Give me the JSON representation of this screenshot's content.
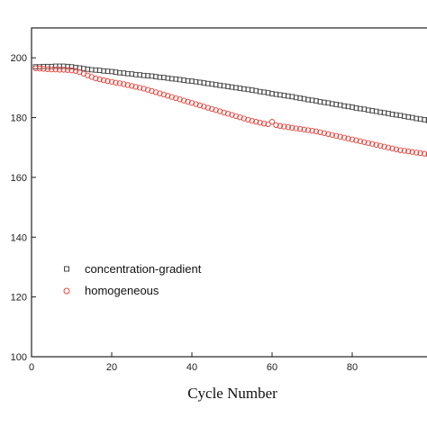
{
  "chart_data": {
    "type": "scatter",
    "title": "",
    "xlabel": "Cycle Number",
    "ylabel": "",
    "xlim": [
      0,
      100
    ],
    "ylim": [
      100,
      210
    ],
    "x_ticks": [
      0,
      20,
      40,
      60,
      80
    ],
    "y_ticks": [
      100,
      120,
      140,
      160,
      180,
      200
    ],
    "x_tick_labels": [
      "0",
      "20",
      "40",
      "60",
      "80"
    ],
    "y_tick_labels": [
      "100",
      "120",
      "140",
      "160",
      "180",
      "200"
    ],
    "grid": false,
    "legend_position": "lower-left",
    "series": [
      {
        "name": "concentration-gradient",
        "marker": "square",
        "color": "#444444",
        "x": [
          1,
          2,
          3,
          4,
          5,
          6,
          7,
          8,
          9,
          10,
          11,
          12,
          13,
          14,
          15,
          16,
          17,
          18,
          19,
          20,
          21,
          22,
          23,
          24,
          25,
          26,
          27,
          28,
          29,
          30,
          31,
          32,
          33,
          34,
          35,
          36,
          37,
          38,
          39,
          40,
          41,
          42,
          43,
          44,
          45,
          46,
          47,
          48,
          49,
          50,
          51,
          52,
          53,
          54,
          55,
          56,
          57,
          58,
          59,
          60,
          61,
          62,
          63,
          64,
          65,
          66,
          67,
          68,
          69,
          70,
          71,
          72,
          73,
          74,
          75,
          76,
          77,
          78,
          79,
          80,
          81,
          82,
          83,
          84,
          85,
          86,
          87,
          88,
          89,
          90,
          91,
          92,
          93,
          94,
          95,
          96,
          97,
          98,
          99,
          100
        ],
        "y": [
          197.0,
          197.0,
          197.1,
          197.1,
          197.1,
          197.2,
          197.2,
          197.2,
          197.1,
          197.0,
          196.8,
          196.6,
          196.4,
          196.2,
          196.0,
          195.9,
          195.8,
          195.6,
          195.5,
          195.4,
          195.2,
          195.0,
          194.9,
          194.7,
          194.6,
          194.4,
          194.3,
          194.1,
          194.0,
          193.9,
          193.7,
          193.5,
          193.4,
          193.2,
          193.0,
          192.9,
          192.7,
          192.5,
          192.3,
          192.2,
          192.0,
          191.8,
          191.6,
          191.4,
          191.2,
          191.0,
          190.8,
          190.6,
          190.4,
          190.2,
          190.0,
          189.8,
          189.6,
          189.4,
          189.2,
          189.0,
          188.7,
          188.5,
          188.3,
          188.0,
          187.8,
          187.6,
          187.4,
          187.2,
          187.0,
          186.7,
          186.5,
          186.3,
          186.0,
          185.8,
          185.6,
          185.3,
          185.1,
          184.9,
          184.6,
          184.4,
          184.2,
          183.9,
          183.7,
          183.5,
          183.2,
          183.0,
          182.8,
          182.5,
          182.3,
          182.1,
          181.8,
          181.6,
          181.4,
          181.1,
          180.9,
          180.7,
          180.4,
          180.2,
          180.0,
          179.7,
          179.5,
          179.3,
          179.0,
          178.8
        ]
      },
      {
        "name": "homogeneous",
        "marker": "circle",
        "color": "#e3433b",
        "x": [
          1,
          2,
          3,
          4,
          5,
          6,
          7,
          8,
          9,
          10,
          11,
          12,
          13,
          14,
          15,
          16,
          17,
          18,
          19,
          20,
          21,
          22,
          23,
          24,
          25,
          26,
          27,
          28,
          29,
          30,
          31,
          32,
          33,
          34,
          35,
          36,
          37,
          38,
          39,
          40,
          41,
          42,
          43,
          44,
          45,
          46,
          47,
          48,
          49,
          50,
          51,
          52,
          53,
          54,
          55,
          56,
          57,
          58,
          59,
          60,
          61,
          62,
          63,
          64,
          65,
          66,
          67,
          68,
          69,
          70,
          71,
          72,
          73,
          74,
          75,
          76,
          77,
          78,
          79,
          80,
          81,
          82,
          83,
          84,
          85,
          86,
          87,
          88,
          89,
          90,
          91,
          92,
          93,
          94,
          95,
          96,
          97,
          98,
          99,
          100
        ],
        "y": [
          196.5,
          196.4,
          196.3,
          196.2,
          196.1,
          196.1,
          196.0,
          196.0,
          195.9,
          195.8,
          195.6,
          195.2,
          194.7,
          194.1,
          193.6,
          193.1,
          192.8,
          192.5,
          192.2,
          192.0,
          191.7,
          191.5,
          191.2,
          190.9,
          190.6,
          190.3,
          190.0,
          189.7,
          189.3,
          188.9,
          188.5,
          188.1,
          187.7,
          187.3,
          186.9,
          186.5,
          186.1,
          185.7,
          185.3,
          184.9,
          184.5,
          184.1,
          183.7,
          183.3,
          182.9,
          182.5,
          182.1,
          181.7,
          181.3,
          180.9,
          180.5,
          180.1,
          179.7,
          179.3,
          178.9,
          178.6,
          178.3,
          178.0,
          177.8,
          178.6,
          177.5,
          177.2,
          177.0,
          176.8,
          176.6,
          176.4,
          176.2,
          176.0,
          175.8,
          175.6,
          175.4,
          175.1,
          174.8,
          174.5,
          174.2,
          173.9,
          173.6,
          173.3,
          173.0,
          172.7,
          172.4,
          172.1,
          171.8,
          171.5,
          171.2,
          170.9,
          170.6,
          170.3,
          170.0,
          169.7,
          169.4,
          169.1,
          168.9,
          168.7,
          168.5,
          168.3,
          168.1,
          167.9,
          167.7,
          167.5
        ]
      }
    ]
  }
}
